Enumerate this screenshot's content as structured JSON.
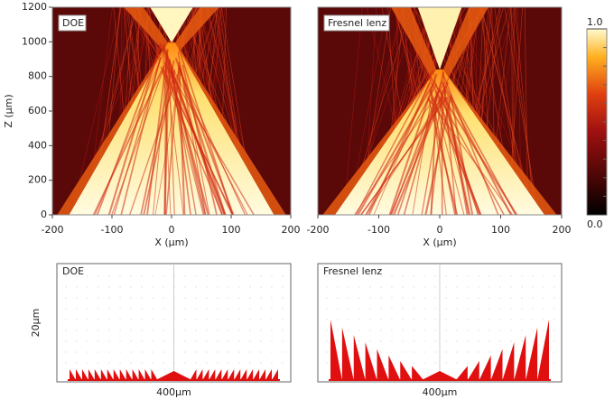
{
  "chart_data": [
    {
      "type": "heatmap",
      "title": "DOE",
      "xlabel": "X (μm)",
      "ylabel": "Z (μm)",
      "xlim": [
        -200,
        200
      ],
      "ylim": [
        0,
        1200
      ],
      "xticks": [
        -200,
        -100,
        0,
        100,
        200
      ],
      "yticks": [
        0,
        200,
        400,
        600,
        800,
        1000,
        1200
      ]
    },
    {
      "type": "heatmap",
      "title": "Fresnel lenz",
      "xlabel": "X (μm)",
      "xlim": [
        -200,
        200
      ],
      "ylim": [
        0,
        1200
      ],
      "xticks": [
        -200,
        -100,
        0,
        100,
        200
      ],
      "zlim": [
        0,
        1
      ],
      "zticks": [
        {
          "value": 0,
          "label": "0.0"
        },
        {
          "value": 1,
          "label": "1.0"
        }
      ]
    },
    {
      "type": "profile",
      "title": "DOE",
      "ylabel": "20μm",
      "xlabel": "400μm"
    },
    {
      "type": "profile",
      "title": "Fresnel lenz",
      "xlabel": "400μm"
    }
  ]
}
